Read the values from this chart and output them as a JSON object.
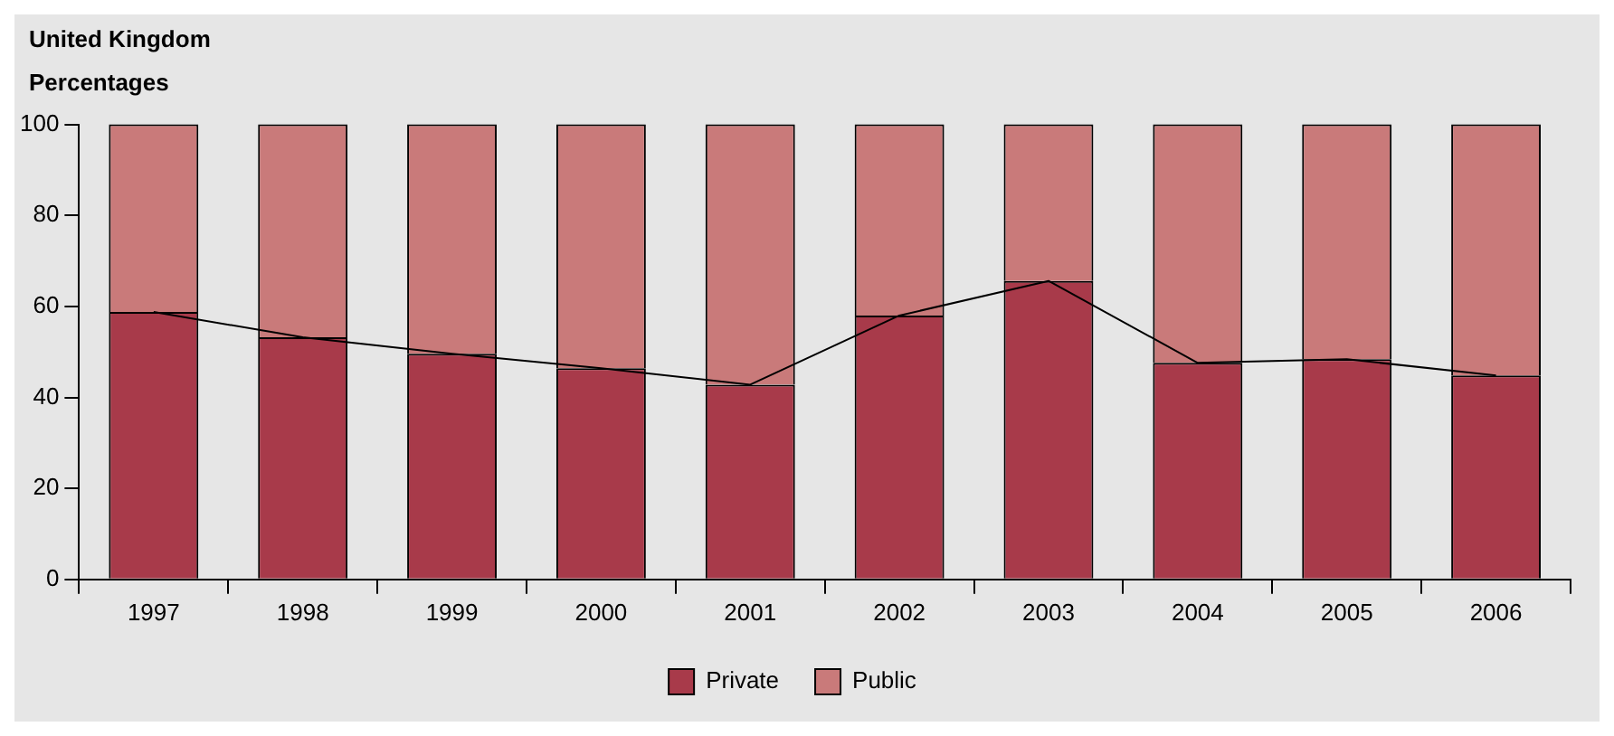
{
  "chart_data": {
    "type": "bar",
    "title": "United Kingdom",
    "subtitle": "Percentages",
    "categories": [
      "1997",
      "1998",
      "1999",
      "2000",
      "2001",
      "2002",
      "2003",
      "2004",
      "2005",
      "2006"
    ],
    "stacked": true,
    "ylim": [
      0,
      100
    ],
    "yticks": [
      0,
      20,
      40,
      60,
      80,
      100
    ],
    "grid": false,
    "legend": "bottom",
    "series": [
      {
        "name": "Private",
        "color": "#a83a4a",
        "values": [
          58.8,
          53.2,
          49.6,
          46.4,
          42.8,
          58,
          65.6,
          47.6,
          48.4,
          44.8
        ]
      },
      {
        "name": "Public",
        "color": "#c97a7a",
        "values": [
          41.2,
          46.8,
          50.4,
          53.6,
          57.2,
          42,
          34.4,
          52.4,
          51.6,
          55.2
        ]
      },
      {
        "type": "line",
        "color": "#000000",
        "values": [
          58.8,
          53.2,
          49.6,
          46.4,
          42.8,
          58,
          65.6,
          47.6,
          48.4,
          44.8
        ]
      }
    ]
  }
}
